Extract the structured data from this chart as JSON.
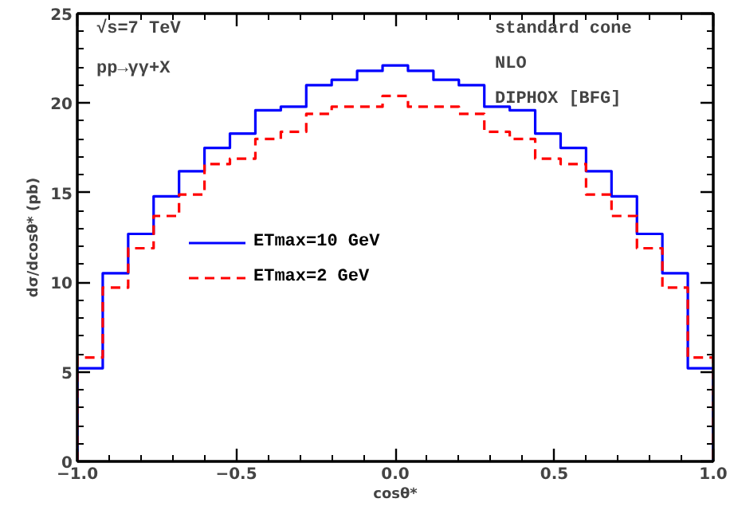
{
  "chart_data": {
    "type": "histogram",
    "bins": [
      -1.0,
      -0.92,
      -0.84,
      -0.76,
      -0.68,
      -0.6,
      -0.52,
      -0.44,
      -0.36,
      -0.28,
      -0.2,
      -0.12,
      -0.04,
      0.04,
      0.12,
      0.2,
      0.28,
      0.36,
      0.44,
      0.52,
      0.6,
      0.68,
      0.76,
      0.84,
      0.92,
      1.0
    ],
    "series": [
      {
        "name": "ETmax=10 GeV",
        "color": "#0000ff",
        "line_style": "solid",
        "values": [
          5.2,
          10.5,
          12.7,
          14.8,
          16.2,
          17.5,
          18.3,
          19.6,
          19.8,
          21.0,
          21.3,
          21.8,
          22.1,
          21.8,
          21.3,
          21.0,
          19.8,
          19.6,
          18.3,
          17.5,
          16.2,
          14.8,
          12.7,
          10.5,
          5.2
        ]
      },
      {
        "name": "ETmax=2 GeV",
        "color": "#ff0000",
        "line_style": "dashed",
        "values": [
          5.8,
          9.7,
          11.9,
          13.7,
          14.9,
          16.6,
          16.9,
          18.0,
          18.4,
          19.4,
          19.8,
          19.8,
          20.4,
          19.8,
          19.8,
          19.4,
          18.4,
          18.0,
          16.9,
          16.6,
          14.9,
          13.7,
          11.9,
          9.7,
          5.8
        ]
      }
    ],
    "xlabel": "cosθ*",
    "ylabel": "dσ/dcosθ* (pb)",
    "xlim": [
      -1.0,
      1.0
    ],
    "ylim": [
      0,
      25
    ],
    "xticks": [
      {
        "value": -1.0,
        "label": "−1.0"
      },
      {
        "value": -0.5,
        "label": "−0.5"
      },
      {
        "value": 0.0,
        "label": "0.0"
      },
      {
        "value": 0.5,
        "label": "0.5"
      },
      {
        "value": 1.0,
        "label": "1.0"
      }
    ],
    "yticks": [
      0,
      5,
      10,
      15,
      20,
      25
    ],
    "annotations": [
      "√s=7 TeV",
      "pp→γγ+X",
      "standard cone",
      "NLO",
      "DIPHOX  [BFG]"
    ],
    "legend": "center",
    "grid": false
  }
}
